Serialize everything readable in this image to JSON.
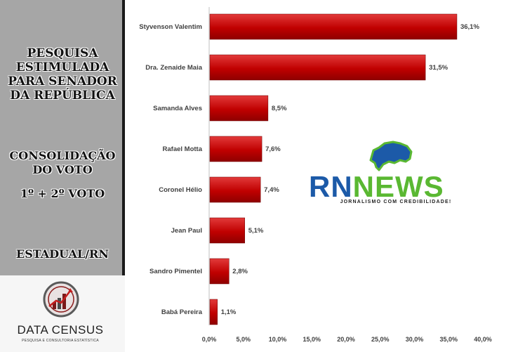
{
  "left_panel": {
    "headline": "PESQUISA ESTIMULADA PARA SENADOR DA REPÚBLICA",
    "subheadline": "CONSOLIDAÇÃO DO VOTO",
    "vote_round": "1º + 2º VOTO",
    "region": "ESTADUAL/RN"
  },
  "company_logo": {
    "icon": "data-census-emblem-icon",
    "name": "DATA CENSUS",
    "tagline": "PESQUISA E CONSULTORIA ESTATÍSTICA"
  },
  "watermark": {
    "icon": "rn-state-map-icon",
    "brand_part1": "RN",
    "brand_part2": "NEWS",
    "tagline": "JORNALISMO COM CREDIBILIDADE!",
    "colors": {
      "rn": "#1c5aa8",
      "news": "#5ab832"
    }
  },
  "chart_data": {
    "type": "bar",
    "orientation": "horizontal",
    "categories": [
      "Styvenson Valentim",
      "Dra. Zenaide Maia",
      "Samanda Alves",
      "Rafael Motta",
      "Coronel Hélio",
      "Jean Paul",
      "Sandro Pimentel",
      "Babá Pereira"
    ],
    "values": [
      36.1,
      31.5,
      8.5,
      7.6,
      7.4,
      5.1,
      2.8,
      1.1
    ],
    "value_labels": [
      "36,1%",
      "31,5%",
      "8,5%",
      "7,6%",
      "7,4%",
      "5,1%",
      "2,8%",
      "1,1%"
    ],
    "x_ticks": [
      "0,0%",
      "5,0%",
      "10,0%",
      "15,0%",
      "20,0%",
      "25,0%",
      "30,0%",
      "35,0%",
      "40,0%"
    ],
    "xlim": [
      0,
      40
    ],
    "grid": false,
    "bar_color": "#c00000"
  }
}
